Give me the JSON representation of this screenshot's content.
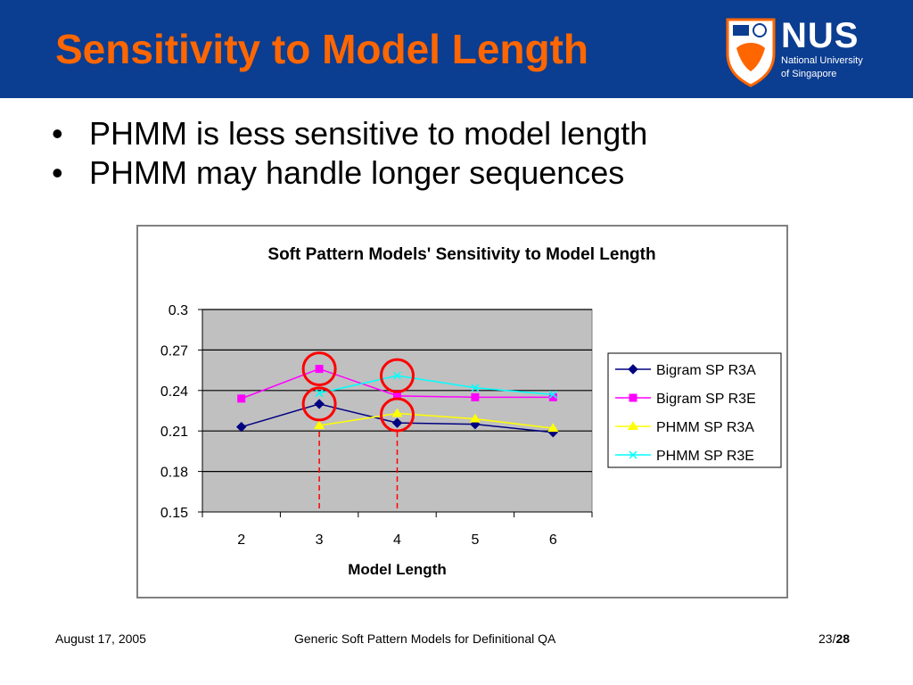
{
  "slide": {
    "title": "Sensitivity to Model Length",
    "bullets": [
      "PHMM is less sensitive to model length",
      "PHMM may handle longer sequences"
    ]
  },
  "logo": {
    "abbr": "NUS",
    "line1": "National University",
    "line2": "of Singapore"
  },
  "footer": {
    "date": "August 17, 2005",
    "center": "Generic Soft Pattern Models for Definitional QA",
    "page": "23/",
    "total": "28"
  },
  "colors": {
    "header_bg": "#0b3d91",
    "title": "#ff6600",
    "plot_bg": "#c0c0c0",
    "highlight": "#ff0000"
  },
  "chart_data": {
    "type": "line",
    "title": "Soft Pattern Models' Sensitivity to Model Length",
    "xlabel": "Model Length",
    "ylabel": "",
    "x": [
      2,
      3,
      4,
      5,
      6
    ],
    "ylim": [
      0.15,
      0.3
    ],
    "yticks": [
      "0.3",
      "0.27",
      "0.24",
      "0.21",
      "0.18",
      "0.15"
    ],
    "grid": true,
    "legend_position": "right",
    "series": [
      {
        "name": "Bigram SP R3A",
        "color": "#000080",
        "marker": "diamond",
        "x": [
          2,
          3,
          4,
          5,
          6
        ],
        "values": [
          0.213,
          0.23,
          0.216,
          0.215,
          0.209
        ]
      },
      {
        "name": "Bigram SP R3E",
        "color": "#ff00ff",
        "marker": "square",
        "x": [
          2,
          3,
          4,
          5,
          6
        ],
        "values": [
          0.234,
          0.256,
          0.236,
          0.235,
          0.235
        ]
      },
      {
        "name": "PHMM SP R3A",
        "color": "#ffff00",
        "marker": "triangle",
        "x": [
          3,
          4,
          5,
          6
        ],
        "values": [
          0.214,
          0.223,
          0.219,
          0.212
        ]
      },
      {
        "name": "PHMM SP R3E",
        "color": "#00ffff",
        "marker": "x",
        "x": [
          3,
          4,
          5,
          6
        ],
        "values": [
          0.238,
          0.251,
          0.242,
          0.237
        ]
      }
    ],
    "annotations": {
      "circles": [
        {
          "x": 3,
          "y": 0.256
        },
        {
          "x": 3,
          "y": 0.23
        },
        {
          "x": 4,
          "y": 0.251
        },
        {
          "x": 4,
          "y": 0.222
        }
      ],
      "dashed_lines_x": [
        3,
        4
      ]
    }
  }
}
